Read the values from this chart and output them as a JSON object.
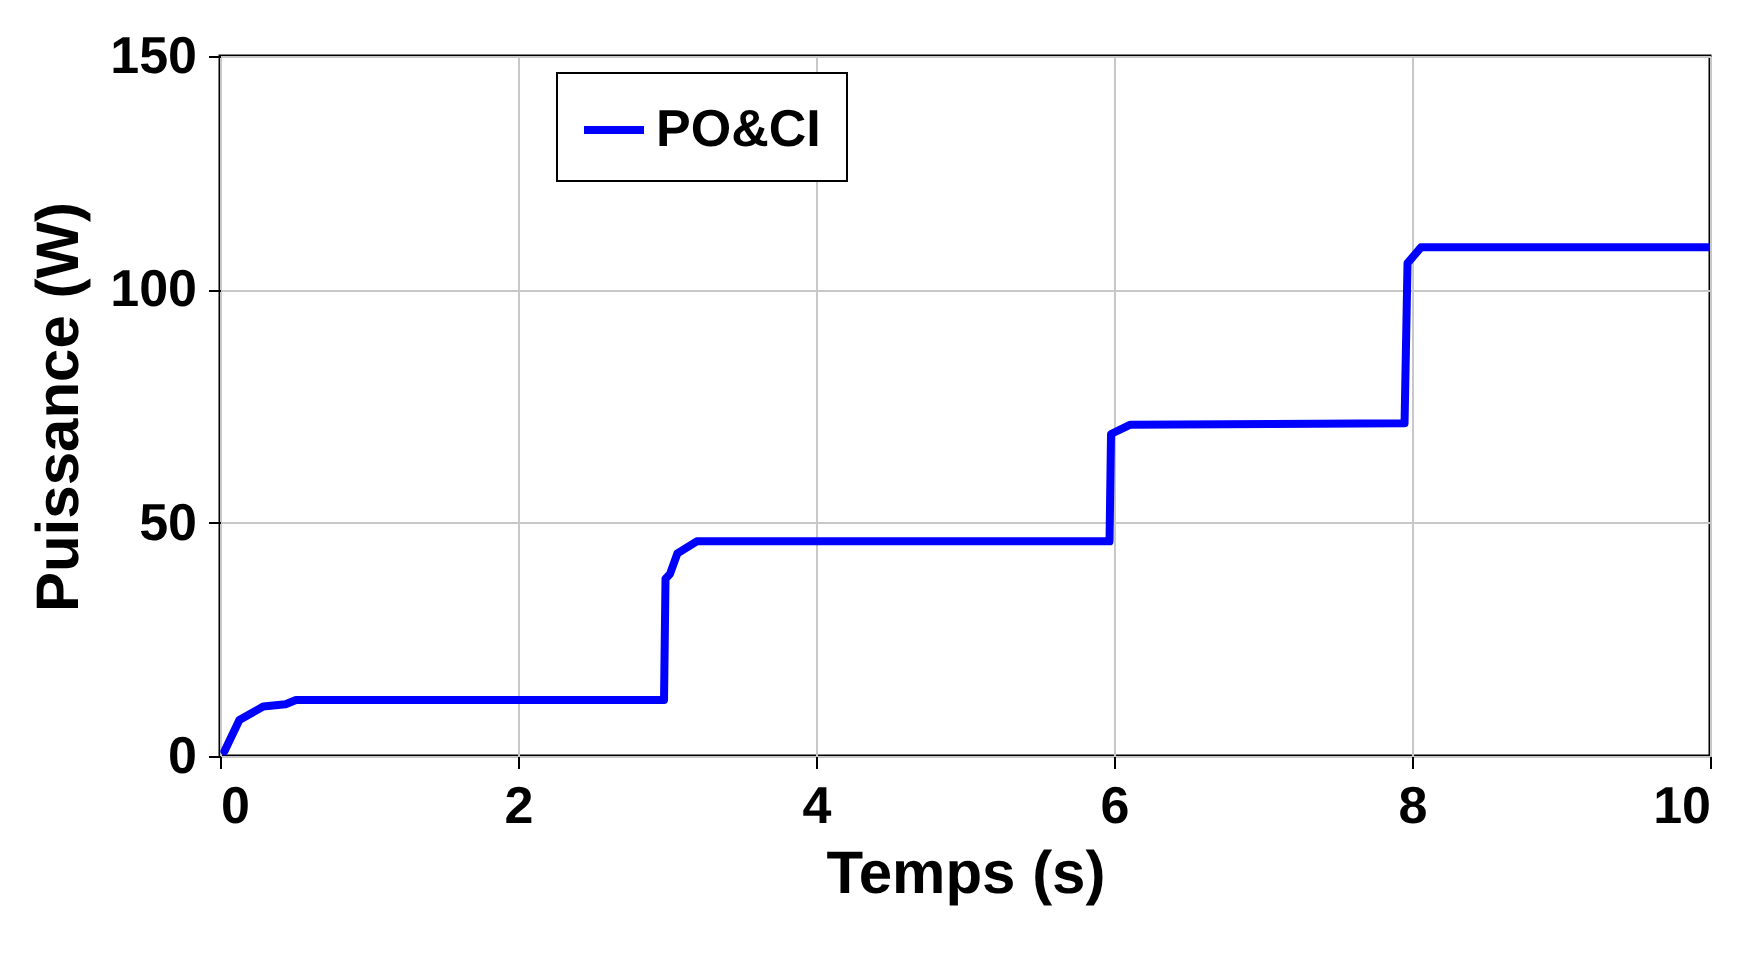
{
  "chart_data": {
    "type": "line",
    "xlabel": "Temps (s)",
    "ylabel": "Puissance (W)",
    "xlim": [
      0,
      10
    ],
    "xticks": [
      0,
      2,
      4,
      6,
      8,
      10
    ],
    "ylim": [
      0,
      150
    ],
    "yticks": [
      0,
      50,
      100,
      150
    ],
    "grid": true,
    "legend": "top",
    "line_style": "solid",
    "marker": "none",
    "series": [
      {
        "name": "PO&CI",
        "color": "#0000ff",
        "x": [
          0.03,
          0.13,
          0.29,
          0.44,
          0.51,
          2.98,
          2.99,
          3.02,
          3.07,
          3.2,
          5.97,
          5.98,
          6.11,
          7.95,
          7.97,
          8.06,
          10
        ],
        "values": [
          1,
          7.7,
          10.6,
          11.1,
          12,
          12,
          38,
          39,
          43.4,
          46,
          46,
          69,
          71,
          71.3,
          105.6,
          109,
          109
        ]
      }
    ]
  }
}
